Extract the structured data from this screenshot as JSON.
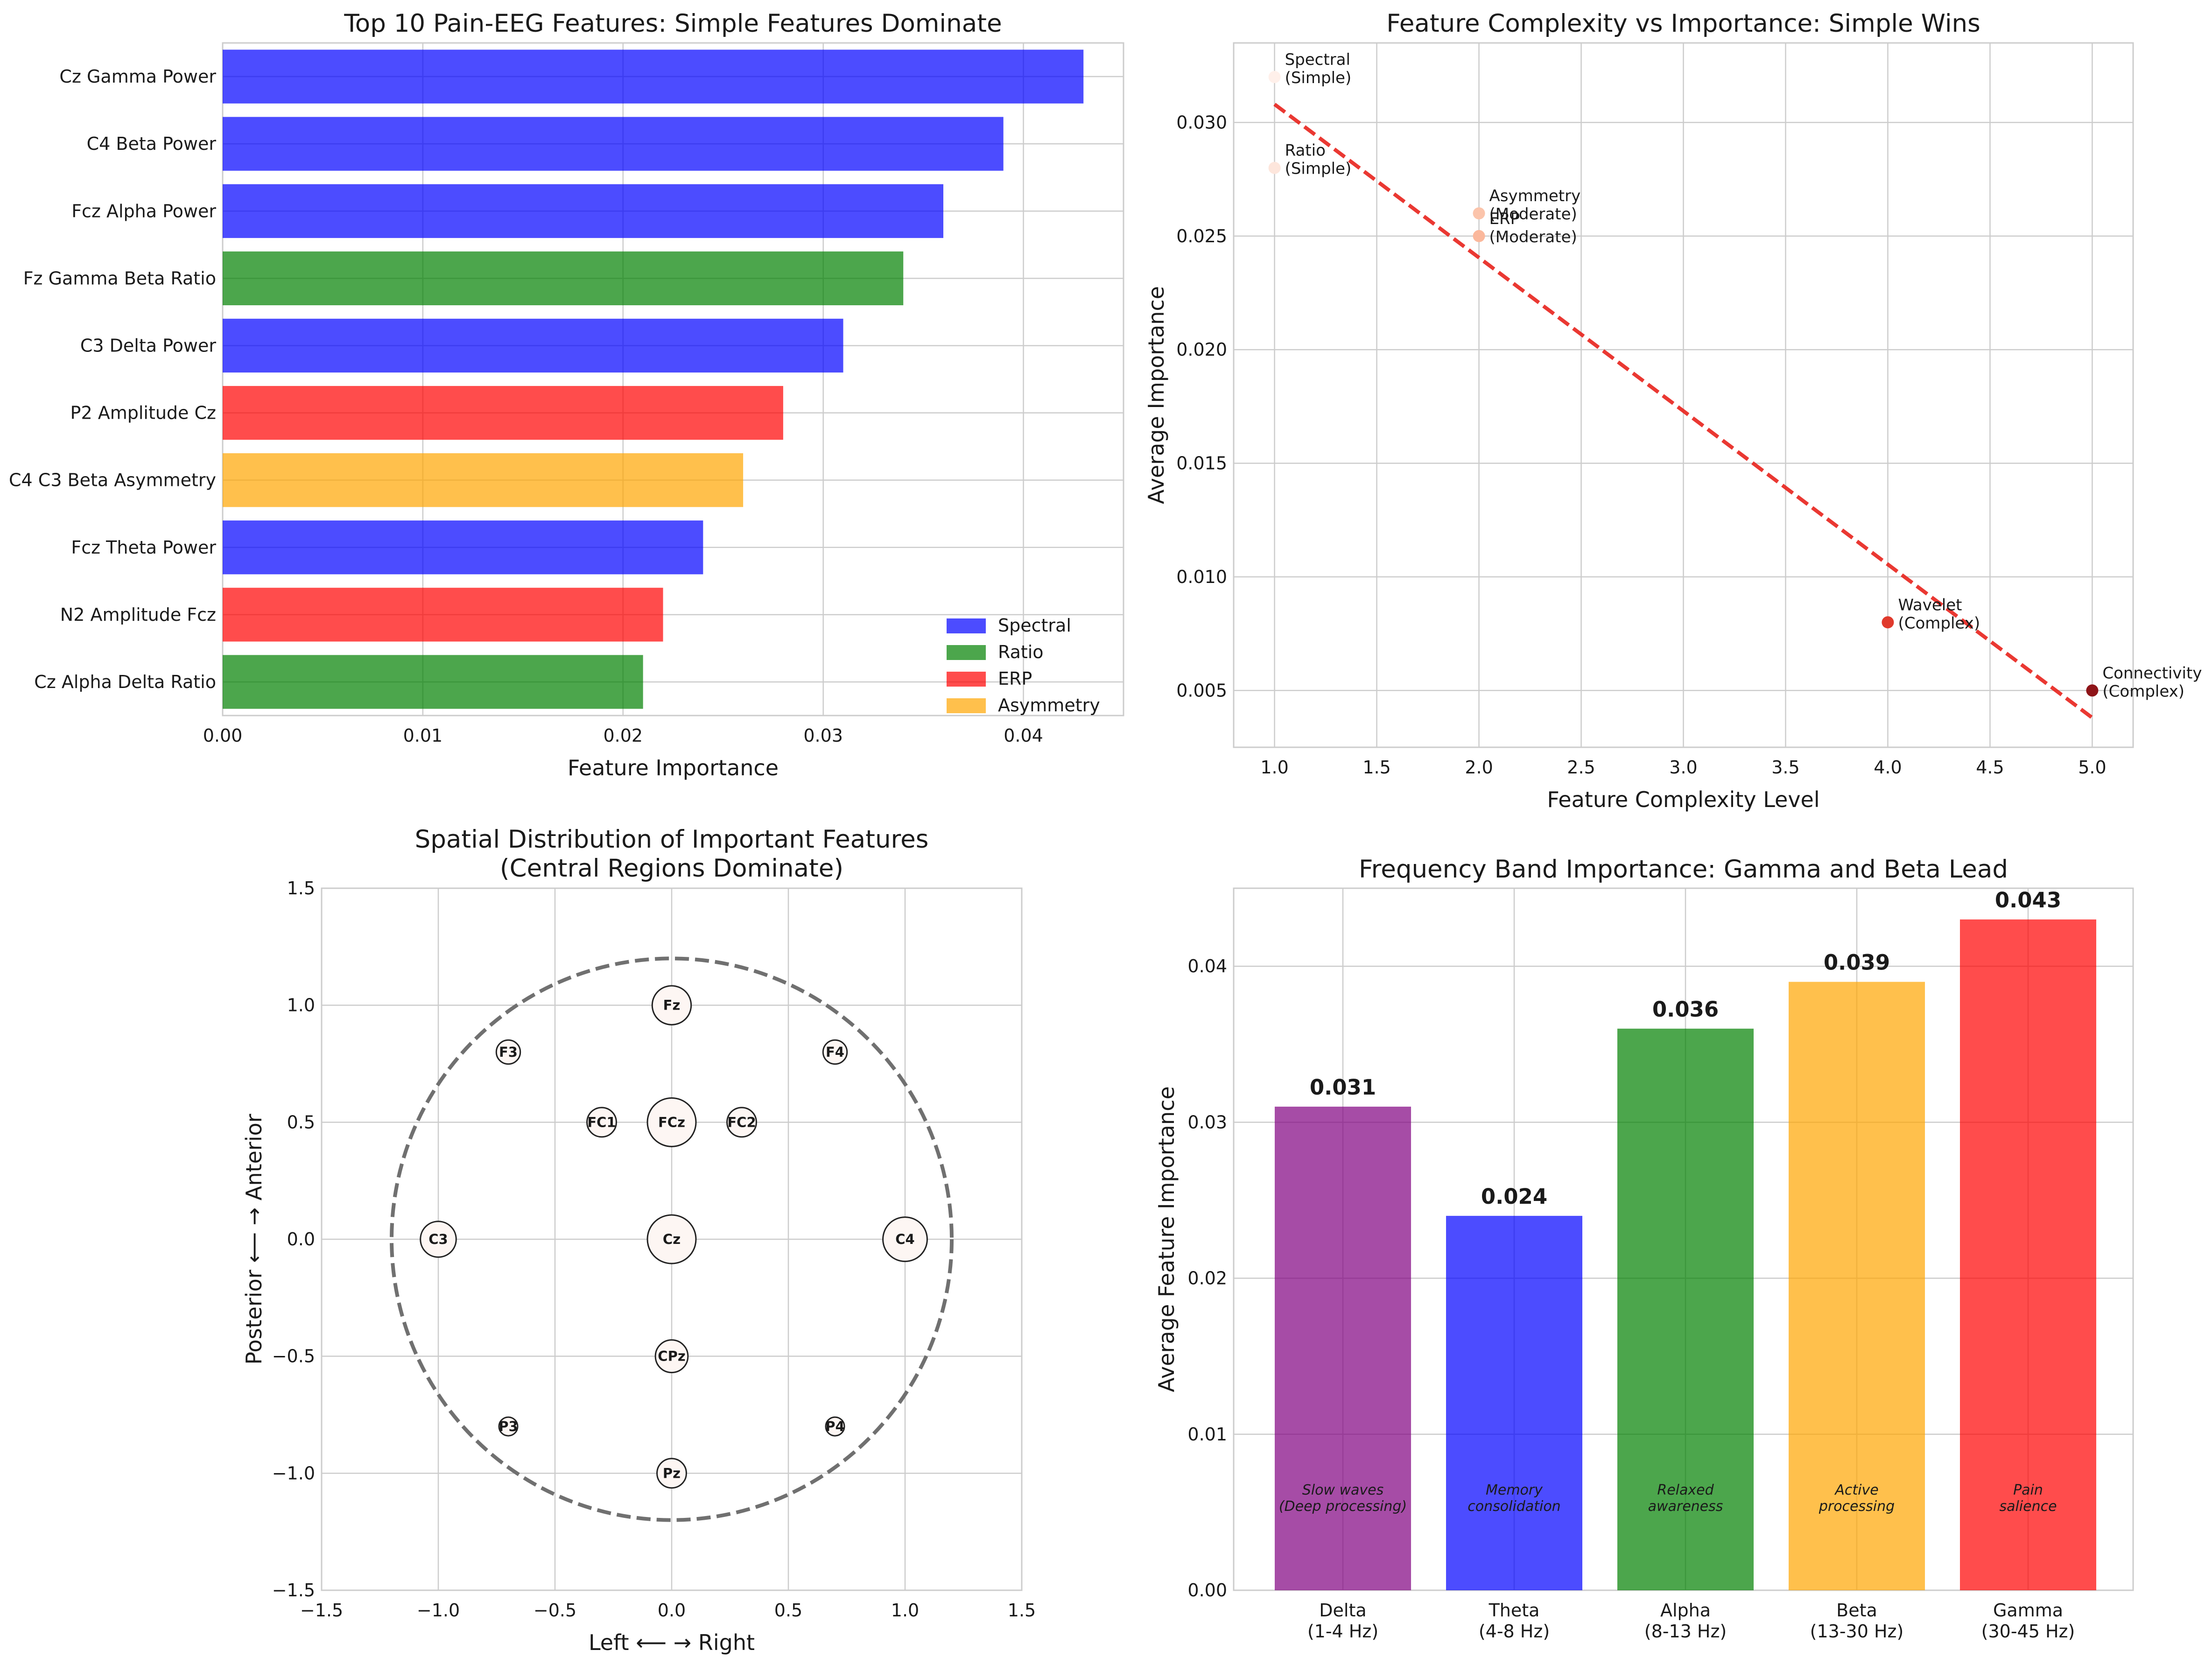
{
  "chart_data": [
    {
      "type": "bar",
      "orientation": "horizontal",
      "title": "Top 10 Pain-EEG Features: Simple Features Dominate",
      "xlabel": "Feature Importance",
      "ylabel": "",
      "xlim": [
        0,
        0.045
      ],
      "xticks": [
        "0.00",
        "0.01",
        "0.02",
        "0.03",
        "0.04"
      ],
      "grid": true,
      "legend_position": "lower-right",
      "legend": [
        {
          "label": "Spectral",
          "color": "#0000ff"
        },
        {
          "label": "Ratio",
          "color": "#008000"
        },
        {
          "label": "ERP",
          "color": "#ff0000"
        },
        {
          "label": "Asymmetry",
          "color": "#ffa500"
        }
      ],
      "categories": [
        "Cz Gamma Power",
        "C4 Beta Power",
        "Fcz Alpha Power",
        "Fz Gamma Beta Ratio",
        "C3 Delta Power",
        "P2 Amplitude Cz",
        "C4 C3 Beta Asymmetry",
        "Fcz Theta Power",
        "N2 Amplitude Fcz",
        "Cz Alpha Delta Ratio"
      ],
      "values": [
        0.043,
        0.039,
        0.036,
        0.034,
        0.031,
        0.028,
        0.026,
        0.024,
        0.022,
        0.021
      ],
      "groups": [
        "Spectral",
        "Spectral",
        "Spectral",
        "Ratio",
        "Spectral",
        "ERP",
        "Asymmetry",
        "Spectral",
        "ERP",
        "Ratio"
      ]
    },
    {
      "type": "scatter",
      "title": "Feature Complexity vs Importance: Simple Wins",
      "xlabel": "Feature Complexity Level",
      "ylabel": "Average Importance",
      "xlim": [
        0.8,
        5.2
      ],
      "ylim": [
        0.0025,
        0.0335
      ],
      "xticks": [
        "1.0",
        "1.5",
        "2.0",
        "2.5",
        "3.0",
        "3.5",
        "4.0",
        "4.5",
        "5.0"
      ],
      "yticks": [
        "0.005",
        "0.010",
        "0.015",
        "0.020",
        "0.025",
        "0.030"
      ],
      "grid": true,
      "points": [
        {
          "label": "Spectral\n(Simple)",
          "x": 1,
          "y": 0.032,
          "color": "#fff0ea"
        },
        {
          "label": "Ratio\n(Simple)",
          "x": 1,
          "y": 0.028,
          "color": "#fde6dc"
        },
        {
          "label": "Asymmetry\n(Moderate)",
          "x": 2,
          "y": 0.026,
          "color": "#fbc4ab"
        },
        {
          "label": "ERP\n(Moderate)",
          "x": 2,
          "y": 0.025,
          "color": "#fbb89c"
        },
        {
          "label": "Wavelet\n(Complex)",
          "x": 4,
          "y": 0.008,
          "color": "#e03a2c"
        },
        {
          "label": "Connectivity\n(Complex)",
          "x": 5,
          "y": 0.005,
          "color": "#8e1418"
        }
      ],
      "trendline": {
        "x": [
          1,
          5
        ],
        "y": [
          0.0308,
          0.0038
        ],
        "color": "#e8221c",
        "style": "dashed"
      }
    },
    {
      "type": "scatter",
      "title": "Spatial Distribution of Important Features\n(Central Regions Dominate)",
      "xlabel": "Left ⟵ → Right",
      "ylabel": "Posterior ⟵ → Anterior",
      "xlim": [
        -1.5,
        1.5
      ],
      "ylim": [
        -1.5,
        1.5
      ],
      "xticks": [
        "−1.5",
        "−1.0",
        "−0.5",
        "0.0",
        "0.5",
        "1.0",
        "1.5"
      ],
      "yticks": [
        "−1.5",
        "−1.0",
        "−0.5",
        "0.0",
        "0.5",
        "1.0",
        "1.5"
      ],
      "grid": true,
      "head_outline_radius": 1.2,
      "electrodes": [
        {
          "name": "Fz",
          "x": 0,
          "y": 1.0,
          "importance": 0.034
        },
        {
          "name": "F3",
          "x": -0.7,
          "y": 0.8,
          "importance": 0.02
        },
        {
          "name": "F4",
          "x": 0.7,
          "y": 0.8,
          "importance": 0.02
        },
        {
          "name": "FC1",
          "x": -0.3,
          "y": 0.5,
          "importance": 0.025
        },
        {
          "name": "FCz",
          "x": 0,
          "y": 0.5,
          "importance": 0.043
        },
        {
          "name": "FC2",
          "x": 0.3,
          "y": 0.5,
          "importance": 0.025
        },
        {
          "name": "C3",
          "x": -1.0,
          "y": 0.0,
          "importance": 0.031
        },
        {
          "name": "Cz",
          "x": 0,
          "y": 0.0,
          "importance": 0.043
        },
        {
          "name": "C4",
          "x": 1.0,
          "y": 0.0,
          "importance": 0.039
        },
        {
          "name": "CPz",
          "x": 0,
          "y": -0.5,
          "importance": 0.028
        },
        {
          "name": "P3",
          "x": -0.7,
          "y": -0.8,
          "importance": 0.015
        },
        {
          "name": "P4",
          "x": 0.7,
          "y": -0.8,
          "importance": 0.015
        },
        {
          "name": "Pz",
          "x": 0,
          "y": -1.0,
          "importance": 0.025
        }
      ]
    },
    {
      "type": "bar",
      "title": "Frequency Band Importance: Gamma and Beta Lead",
      "xlabel": "",
      "ylabel": "Average Feature Importance",
      "ylim": [
        0,
        0.045
      ],
      "yticks": [
        "0.00",
        "0.01",
        "0.02",
        "0.03",
        "0.04"
      ],
      "grid": true,
      "categories": [
        "Delta\n(1-4 Hz)",
        "Theta\n(4-8 Hz)",
        "Alpha\n(8-13 Hz)",
        "Beta\n(13-30 Hz)",
        "Gamma\n(30-45 Hz)"
      ],
      "values": [
        0.031,
        0.024,
        0.036,
        0.039,
        0.043
      ],
      "value_labels": [
        "0.031",
        "0.024",
        "0.036",
        "0.039",
        "0.043"
      ],
      "colors": [
        "#800080",
        "#0000ff",
        "#008000",
        "#ffa500",
        "#ff0000"
      ],
      "annotations": [
        "Slow waves\n(Deep processing)",
        "Memory\nconsolidation",
        "Relaxed\nawareness",
        "Active\nprocessing",
        "Pain\nsalience"
      ]
    }
  ]
}
